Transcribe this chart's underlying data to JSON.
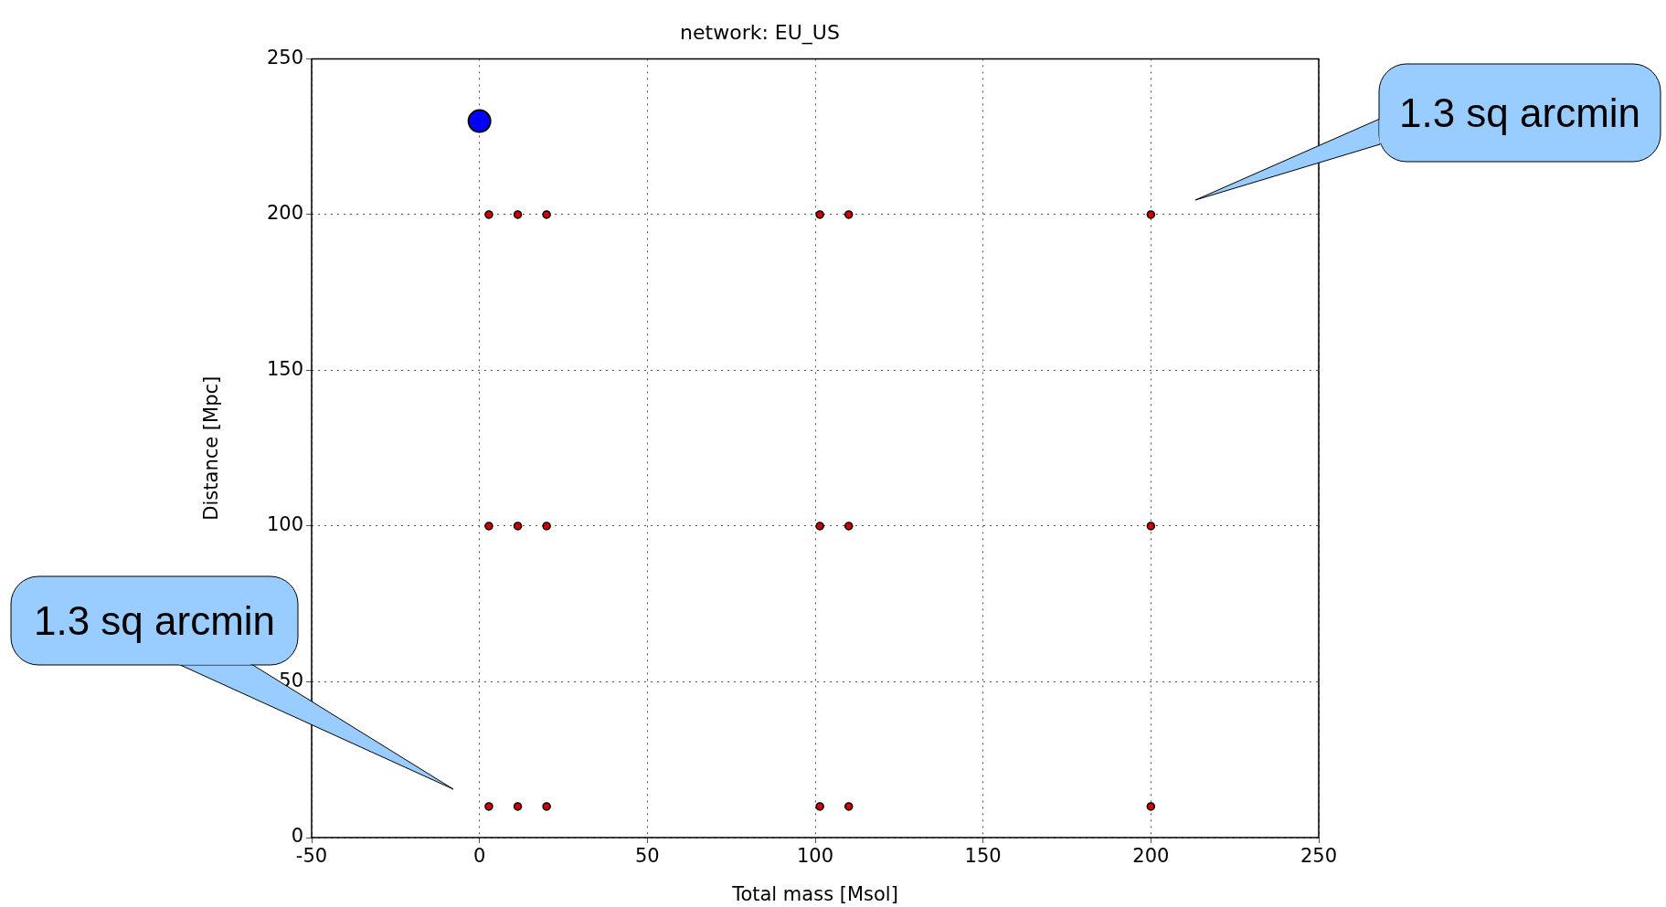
{
  "chart_data": {
    "type": "scatter",
    "title": "network: EU_US",
    "xlabel": "Total mass [Msol]",
    "ylabel": "Distance [Mpc]",
    "series": [
      {
        "color": "#0000ff",
        "x": [
          0
        ],
        "values": [
          230
        ]
      },
      {
        "color": "#cc0000",
        "x": [
          2.8,
          11.4,
          20,
          101.4,
          110,
          200,
          2.8,
          11.4,
          20,
          101.4,
          110,
          200,
          2.8,
          11.4,
          20,
          101.4,
          110,
          200
        ],
        "values": [
          200,
          200,
          200,
          200,
          200,
          200,
          100,
          100,
          100,
          100,
          100,
          100,
          10,
          10,
          10,
          10,
          10,
          10
        ]
      }
    ],
    "xlim": [
      -50,
      250
    ],
    "xticks": [
      -50,
      0,
      50,
      100,
      150,
      200,
      250
    ],
    "ylim": [
      0,
      250
    ],
    "yticks": [
      0,
      50,
      100,
      150,
      200,
      250
    ],
    "grid": true,
    "legend": false,
    "marker": "circle",
    "annotations": [
      "1.3 sq arcmin",
      "1.3 sq arcmin"
    ]
  }
}
